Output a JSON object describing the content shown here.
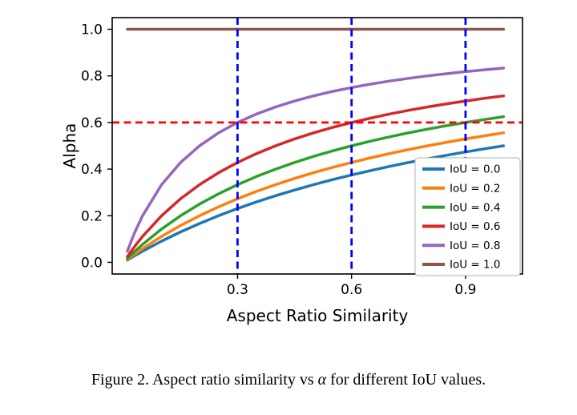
{
  "figure": {
    "caption_prefix": "Figure 2. Aspect ratio similarity vs ",
    "caption_symbol": "α",
    "caption_suffix": " for different IoU values."
  },
  "chart_data": {
    "type": "line",
    "title": "",
    "xlabel": "Aspect Ratio Similarity",
    "ylabel": "Alpha",
    "xlim": [
      -0.03,
      1.05
    ],
    "ylim": [
      -0.05,
      1.05
    ],
    "xticks": [
      0.3,
      0.6,
      0.9
    ],
    "yticks": [
      0.0,
      0.2,
      0.4,
      0.6,
      0.8,
      1.0
    ],
    "grid": false,
    "legend_position": "lower right",
    "x": [
      0.01,
      0.02,
      0.03,
      0.05,
      0.1,
      0.15,
      0.2,
      0.25,
      0.3,
      0.35,
      0.4,
      0.45,
      0.5,
      0.55,
      0.6,
      0.65,
      0.7,
      0.75,
      0.8,
      0.85,
      0.9,
      0.95,
      1.0
    ],
    "series": [
      {
        "name": "IoU = 0.0",
        "color": "#1f77b4",
        "values": [
          0.0099,
          0.0196,
          0.0291,
          0.0476,
          0.0909,
          0.1304,
          0.1667,
          0.2,
          0.2308,
          0.2593,
          0.2857,
          0.3103,
          0.3333,
          0.3548,
          0.375,
          0.3939,
          0.4118,
          0.4286,
          0.4444,
          0.4595,
          0.4737,
          0.4872,
          0.5
        ]
      },
      {
        "name": "IoU = 0.2",
        "color": "#ff7f0e",
        "values": [
          0.0123,
          0.0244,
          0.0361,
          0.0588,
          0.1111,
          0.1579,
          0.2,
          0.2381,
          0.2727,
          0.3043,
          0.3333,
          0.36,
          0.3846,
          0.4074,
          0.4286,
          0.4483,
          0.4667,
          0.4839,
          0.5,
          0.5152,
          0.5294,
          0.5429,
          0.5556
        ]
      },
      {
        "name": "IoU = 0.4",
        "color": "#2ca02c",
        "values": [
          0.0164,
          0.0323,
          0.0476,
          0.0769,
          0.1429,
          0.2,
          0.25,
          0.2941,
          0.3333,
          0.3684,
          0.4,
          0.4286,
          0.4545,
          0.4783,
          0.5,
          0.52,
          0.5385,
          0.5556,
          0.5714,
          0.5862,
          0.6,
          0.6129,
          0.625
        ]
      },
      {
        "name": "IoU = 0.6",
        "color": "#d62728",
        "values": [
          0.0244,
          0.0476,
          0.0698,
          0.1111,
          0.2,
          0.2727,
          0.3333,
          0.3846,
          0.4286,
          0.4667,
          0.5,
          0.5294,
          0.5556,
          0.5789,
          0.6,
          0.619,
          0.6364,
          0.6522,
          0.6667,
          0.68,
          0.6923,
          0.7037,
          0.7143
        ]
      },
      {
        "name": "IoU = 0.8",
        "color": "#9467bd",
        "values": [
          0.0476,
          0.0909,
          0.1304,
          0.2,
          0.3333,
          0.4286,
          0.5,
          0.5556,
          0.6,
          0.6364,
          0.6667,
          0.6923,
          0.7143,
          0.7333,
          0.75,
          0.7647,
          0.7778,
          0.7895,
          0.8,
          0.8095,
          0.8182,
          0.8261,
          0.8333
        ]
      },
      {
        "name": "IoU = 1.0",
        "color": "#8c564b",
        "values": [
          1.0,
          1.0,
          1.0,
          1.0,
          1.0,
          1.0,
          1.0,
          1.0,
          1.0,
          1.0,
          1.0,
          1.0,
          1.0,
          1.0,
          1.0,
          1.0,
          1.0,
          1.0,
          1.0,
          1.0,
          1.0,
          1.0,
          1.0
        ]
      }
    ],
    "reference_lines": [
      {
        "orientation": "horizontal",
        "value": 0.6,
        "color": "#ff0000",
        "style": "dashed"
      },
      {
        "orientation": "vertical",
        "value": 0.3,
        "color": "#0000ff",
        "style": "dashed"
      },
      {
        "orientation": "vertical",
        "value": 0.6,
        "color": "#0000ff",
        "style": "dashed"
      },
      {
        "orientation": "vertical",
        "value": 0.9,
        "color": "#0000ff",
        "style": "dashed"
      }
    ]
  }
}
